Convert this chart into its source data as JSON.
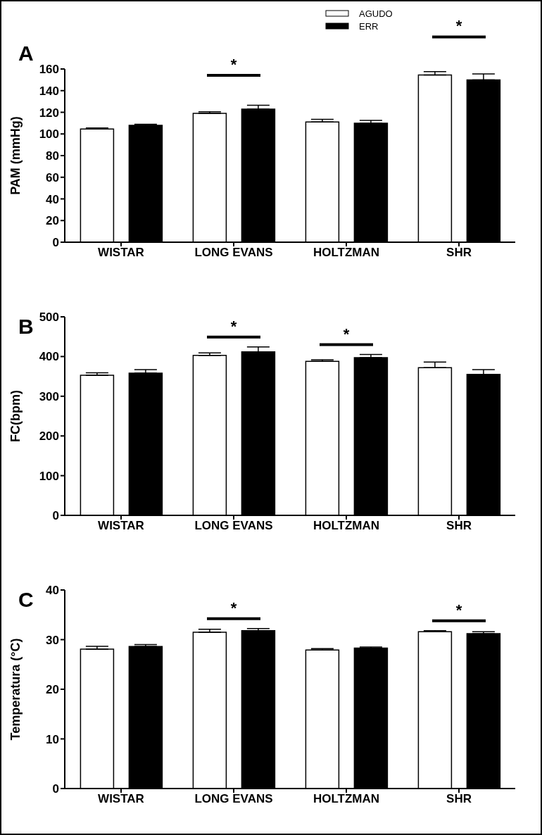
{
  "chart_data": [
    {
      "type": "bar",
      "title": "A",
      "ylabel": "PAM (mmHg)",
      "categories": [
        "WISTAR",
        "LONG EVANS",
        "HOLTZMAN",
        "SHR"
      ],
      "ylim": [
        0,
        160
      ],
      "yticks": [
        0,
        20,
        40,
        60,
        80,
        100,
        120,
        140,
        160
      ],
      "legend": "top",
      "grid": false,
      "series": [
        {
          "name": "AGUDO",
          "color": "#ffffff",
          "values": [
            104.5,
            119,
            111,
            154.5
          ],
          "errors": [
            [
              104.5,
              105.5
            ],
            [
              119,
              120.5
            ],
            [
              111,
              113.5
            ],
            [
              154.5,
              157.5
            ]
          ]
        },
        {
          "name": "ERR",
          "color": "#000000",
          "values": [
            108,
            123,
            110,
            150
          ],
          "errors": [
            [
              108,
              109
            ],
            [
              123,
              126.5
            ],
            [
              110,
              112.5
            ],
            [
              150,
              155.5
            ]
          ]
        }
      ],
      "annotations": [
        "*",
        "*"
      ]
    },
    {
      "type": "bar",
      "title": "B",
      "ylabel": "FC(bpm)",
      "categories": [
        "WISTAR",
        "LONG EVANS",
        "HOLTZMAN",
        "SHR"
      ],
      "ylim": [
        0,
        500
      ],
      "yticks": [
        0,
        100,
        200,
        300,
        400,
        500
      ],
      "legend": false,
      "grid": false,
      "series": [
        {
          "color": "#ffffff",
          "values": [
            353,
            403,
            388,
            372
          ],
          "errors": [
            [
              353,
              359
            ],
            [
              403,
              409
            ],
            [
              388,
              392
            ],
            [
              372,
              386
            ]
          ]
        },
        {
          "color": "#000000",
          "values": [
            358,
            412,
            397,
            355
          ],
          "errors": [
            [
              358,
              367
            ],
            [
              412,
              424
            ],
            [
              397,
              405
            ],
            [
              355,
              367
            ]
          ]
        }
      ],
      "annotations": [
        "*",
        "*"
      ]
    },
    {
      "type": "bar",
      "title": "C",
      "ylabel": "Temperatura (°C)",
      "categories": [
        "WISTAR",
        "LONG EVANS",
        "HOLTZMAN",
        "SHR"
      ],
      "ylim": [
        0,
        40
      ],
      "yticks": [
        0,
        10,
        20,
        30,
        40
      ],
      "legend": false,
      "grid": false,
      "series": [
        {
          "color": "#ffffff",
          "values": [
            28.1,
            31.5,
            27.9,
            31.6
          ],
          "errors": [
            [
              28.1,
              28.65
            ],
            [
              31.5,
              32.1
            ],
            [
              27.9,
              28.2
            ],
            [
              31.6,
              31.8
            ]
          ]
        },
        {
          "color": "#000000",
          "values": [
            28.6,
            31.8,
            28.3,
            31.2
          ],
          "errors": [
            [
              28.6,
              29
            ],
            [
              31.8,
              32.25
            ],
            [
              28.3,
              28.5
            ],
            [
              31.2,
              31.6
            ]
          ]
        }
      ],
      "annotations": [
        "*",
        "*"
      ]
    }
  ]
}
